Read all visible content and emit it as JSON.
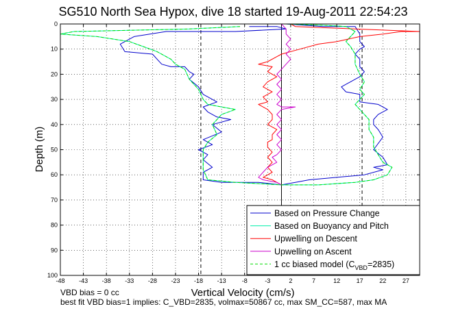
{
  "chart_data": {
    "type": "line",
    "title": "SG510 North Sea Hypox, dive 18 started 19-Aug-2011 22:54:23",
    "xlabel": "Vertical Velocity (cm/s)",
    "ylabel": "Depth (m)",
    "xlim": [
      -48,
      30
    ],
    "ylim": [
      0,
      100
    ],
    "y_reversed": true,
    "grid": true,
    "legend_position": "bottom-right",
    "x_ticks": [
      -48,
      -43,
      -38,
      -33,
      -28,
      -23,
      -18,
      -13,
      -8,
      -3,
      2,
      7,
      12,
      17,
      22,
      27
    ],
    "x_tick_labels": [
      "-48",
      "-43",
      "-38",
      "-33",
      "-28",
      "-23",
      "-18",
      "-13",
      "-8",
      "-3",
      "2",
      "7",
      "12",
      "17",
      "22",
      "27"
    ],
    "y_ticks": [
      0,
      10,
      20,
      30,
      40,
      50,
      60,
      70,
      80,
      90,
      100
    ],
    "y_tick_labels": [
      "0",
      "10",
      "20",
      "30",
      "40",
      "50",
      "60",
      "70",
      "80",
      "90",
      "100"
    ],
    "reference_lines": [
      {
        "style": "dashed",
        "color": "#000000",
        "x": -17.5
      },
      {
        "style": "dashed",
        "color": "#000000",
        "x": 17.5
      },
      {
        "style": "solid",
        "color": "#000000",
        "x": 0
      }
    ],
    "series": [
      {
        "name": "Based on Pressure Change",
        "color": "#0000cc",
        "dash": "",
        "points": [
          [
            -7,
            1
          ],
          [
            -1,
            1
          ],
          [
            1,
            2
          ],
          [
            -10,
            3
          ],
          [
            -25,
            3
          ],
          [
            -32,
            5
          ],
          [
            -35,
            8
          ],
          [
            -34,
            11
          ],
          [
            -28,
            12
          ],
          [
            -27,
            14
          ],
          [
            -26,
            16
          ],
          [
            -24,
            17
          ],
          [
            -21,
            17
          ],
          [
            -20,
            19
          ],
          [
            -19,
            20
          ],
          [
            -20,
            22
          ],
          [
            -18,
            25
          ],
          [
            -17,
            28
          ],
          [
            -16,
            29
          ],
          [
            -14,
            31
          ],
          [
            -17,
            33
          ],
          [
            -16,
            35
          ],
          [
            -14,
            37
          ],
          [
            -11,
            38
          ],
          [
            -15,
            40
          ],
          [
            -13,
            43
          ],
          [
            -17,
            46
          ],
          [
            -15,
            48
          ],
          [
            -18,
            50
          ],
          [
            -16,
            52
          ],
          [
            -17,
            54
          ],
          [
            -15,
            57
          ],
          [
            -17,
            59
          ],
          [
            -17,
            62
          ],
          [
            -13,
            63
          ],
          [
            -5,
            63
          ],
          [
            0,
            64
          ],
          [
            3,
            63
          ],
          [
            6,
            62
          ],
          [
            12,
            61
          ],
          [
            18,
            60
          ],
          [
            22,
            58
          ],
          [
            20,
            57
          ],
          [
            23,
            56
          ],
          [
            22,
            53
          ],
          [
            20,
            50
          ],
          [
            22,
            45
          ],
          [
            21,
            42
          ],
          [
            20,
            40
          ],
          [
            20,
            38
          ],
          [
            21,
            36
          ],
          [
            23,
            34
          ],
          [
            21,
            32
          ],
          [
            17,
            31
          ],
          [
            17,
            28
          ],
          [
            14,
            27
          ],
          [
            13,
            25
          ],
          [
            15,
            23
          ],
          [
            16,
            22
          ],
          [
            17,
            21
          ],
          [
            18,
            19
          ],
          [
            17,
            17
          ],
          [
            17,
            14
          ],
          [
            16,
            12
          ],
          [
            17,
            10
          ],
          [
            18,
            9
          ],
          [
            17,
            7
          ],
          [
            17,
            4
          ],
          [
            16,
            1
          ],
          [
            13,
            1
          ],
          [
            9,
            1
          ],
          [
            1,
            0
          ]
        ]
      },
      {
        "name": "Based on Buoyancy and Pitch",
        "color": "#00eeaa",
        "dash": "",
        "points": [
          [
            -9,
            1
          ],
          [
            -20,
            2
          ],
          [
            -45,
            3
          ],
          [
            -48,
            4
          ],
          [
            -40,
            5
          ],
          [
            -33,
            7
          ],
          [
            -30,
            9
          ],
          [
            -27,
            11
          ],
          [
            -24,
            14
          ],
          [
            -23,
            16
          ],
          [
            -21,
            18
          ],
          [
            -20,
            22
          ],
          [
            -18,
            26
          ],
          [
            -17,
            30
          ],
          [
            -16,
            32
          ],
          [
            -13,
            33
          ],
          [
            -10,
            34
          ],
          [
            -13,
            36
          ],
          [
            -14,
            38
          ],
          [
            -15,
            40
          ],
          [
            -14,
            44
          ],
          [
            -16,
            47
          ],
          [
            -17,
            50
          ],
          [
            -17,
            54
          ],
          [
            -17,
            58
          ],
          [
            -16,
            62
          ],
          [
            -10,
            63
          ],
          [
            0,
            64
          ],
          [
            8,
            64
          ],
          [
            16,
            63
          ],
          [
            20,
            62
          ],
          [
            23,
            60
          ],
          [
            24,
            57
          ],
          [
            22,
            55
          ],
          [
            21,
            52
          ],
          [
            20,
            49
          ],
          [
            20,
            45
          ],
          [
            19,
            42
          ],
          [
            19,
            38
          ],
          [
            17,
            34
          ],
          [
            16,
            32
          ],
          [
            17,
            30
          ],
          [
            18,
            28
          ],
          [
            17,
            26
          ],
          [
            18,
            23
          ],
          [
            17,
            20
          ],
          [
            16,
            16
          ],
          [
            16,
            12
          ],
          [
            15,
            9
          ],
          [
            14,
            7
          ],
          [
            15,
            5
          ],
          [
            16,
            3
          ],
          [
            14,
            1
          ],
          [
            9,
            0.5
          ],
          [
            1,
            0
          ]
        ]
      },
      {
        "name": "Upwelling on Descent",
        "color": "#ff0000",
        "dash": "",
        "points": [
          [
            2,
            0
          ],
          [
            3,
            1
          ],
          [
            30,
            3
          ],
          [
            26,
            3
          ],
          [
            22,
            4
          ],
          [
            17,
            5
          ],
          [
            12,
            7
          ],
          [
            8,
            8
          ],
          [
            4,
            10
          ],
          [
            0,
            12
          ],
          [
            -1,
            13
          ],
          [
            -3,
            15
          ],
          [
            -5,
            16
          ],
          [
            -2,
            17
          ],
          [
            -3,
            19
          ],
          [
            -1,
            21
          ],
          [
            -3,
            23
          ],
          [
            -4,
            25
          ],
          [
            -2,
            27
          ],
          [
            -4,
            29
          ],
          [
            -3,
            31
          ],
          [
            -5,
            32
          ],
          [
            -3,
            34
          ],
          [
            -2,
            36
          ],
          [
            -2,
            38
          ],
          [
            -3,
            40
          ],
          [
            -1,
            42
          ],
          [
            -2,
            44
          ],
          [
            -2,
            46
          ],
          [
            -3,
            47
          ],
          [
            -3,
            49
          ],
          [
            -2,
            51
          ],
          [
            -3,
            53
          ],
          [
            -2,
            55
          ],
          [
            -3,
            57
          ],
          [
            -2,
            59
          ],
          [
            -4,
            61
          ],
          [
            -2,
            62
          ],
          [
            -1,
            63
          ],
          [
            0,
            64
          ]
        ]
      },
      {
        "name": "Upwelling on Ascent",
        "color": "#cc00cc",
        "dash": "",
        "points": [
          [
            0,
            0
          ],
          [
            1,
            2
          ],
          [
            1,
            4
          ],
          [
            2,
            6
          ],
          [
            1,
            8
          ],
          [
            2,
            10
          ],
          [
            1,
            12
          ],
          [
            2,
            14
          ],
          [
            1,
            16
          ],
          [
            0,
            18
          ],
          [
            -1,
            20
          ],
          [
            0,
            22
          ],
          [
            -1,
            24
          ],
          [
            0,
            26
          ],
          [
            -1,
            28
          ],
          [
            0,
            30
          ],
          [
            -1,
            32
          ],
          [
            0,
            33
          ],
          [
            3,
            33
          ],
          [
            0,
            34
          ],
          [
            -1,
            36
          ],
          [
            0,
            38
          ],
          [
            -1,
            40
          ],
          [
            0,
            42
          ],
          [
            -1,
            44
          ],
          [
            0,
            46
          ],
          [
            -1,
            48
          ],
          [
            0,
            50
          ],
          [
            -1,
            52
          ],
          [
            -2,
            53
          ],
          [
            -1,
            55
          ],
          [
            -3,
            57
          ],
          [
            -4,
            59
          ],
          [
            -5,
            61
          ],
          [
            -4,
            62
          ],
          [
            -1,
            63
          ],
          [
            0,
            64
          ]
        ]
      },
      {
        "name": "1 cc biased model (C",
        "name_subscript": "VBD",
        "name_suffix": "=2835)",
        "color": "#00dd00",
        "dash": "4 3",
        "points": [
          [
            -9,
            1
          ],
          [
            -20,
            2
          ],
          [
            -45,
            3
          ],
          [
            -48,
            4
          ],
          [
            -40,
            5
          ],
          [
            -33,
            7
          ],
          [
            -30,
            9
          ],
          [
            -27,
            11
          ],
          [
            -24,
            14
          ],
          [
            -23,
            16
          ],
          [
            -21,
            18
          ],
          [
            -20,
            22
          ],
          [
            -18,
            26
          ],
          [
            -17,
            30
          ],
          [
            -16,
            32
          ],
          [
            -13,
            33
          ],
          [
            -10,
            34
          ],
          [
            -13,
            36
          ],
          [
            -14,
            38
          ],
          [
            -15,
            40
          ],
          [
            -14,
            44
          ],
          [
            -16,
            47
          ],
          [
            -17,
            50
          ],
          [
            -17,
            54
          ],
          [
            -17,
            58
          ],
          [
            -16,
            62
          ],
          [
            -10,
            63
          ],
          [
            0,
            64
          ],
          [
            8,
            64
          ],
          [
            16,
            63
          ],
          [
            20,
            62
          ],
          [
            23,
            60
          ],
          [
            24,
            57
          ],
          [
            22,
            55
          ],
          [
            21,
            52
          ],
          [
            20,
            49
          ],
          [
            20,
            45
          ],
          [
            19,
            42
          ],
          [
            19,
            38
          ],
          [
            17,
            34
          ],
          [
            16,
            32
          ],
          [
            17,
            30
          ],
          [
            18,
            28
          ],
          [
            17,
            26
          ],
          [
            18,
            23
          ],
          [
            17,
            20
          ],
          [
            16,
            16
          ],
          [
            16,
            12
          ],
          [
            15,
            9
          ],
          [
            14,
            7
          ],
          [
            15,
            5
          ],
          [
            16,
            3
          ],
          [
            14,
            1
          ],
          [
            9,
            0.5
          ],
          [
            1,
            0
          ]
        ]
      }
    ]
  },
  "footnotes": {
    "line1": "VBD bias = 0 cc",
    "line2": "best fit VBD bias=1 implies: C_VBD=2835, volmax=50867 cc, max SM_CC=587, max MA"
  }
}
